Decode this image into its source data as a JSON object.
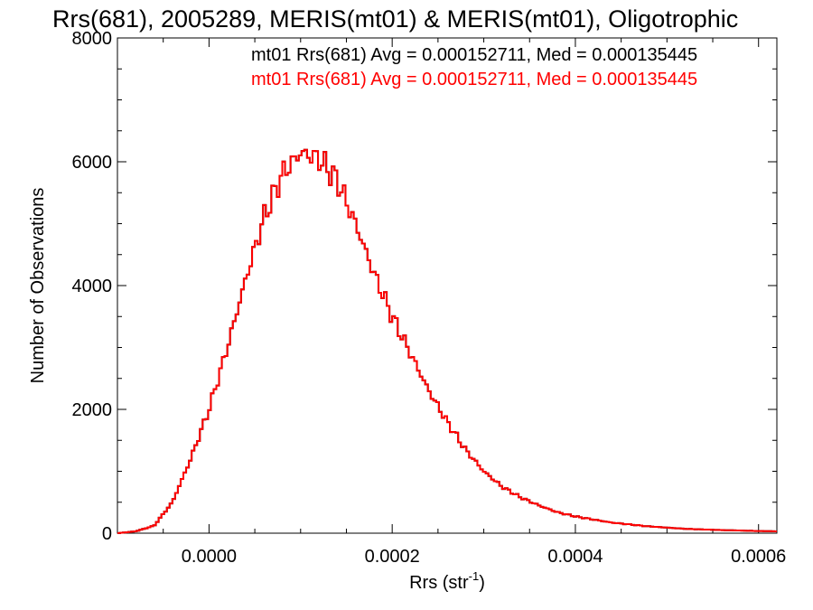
{
  "chart_data": {
    "type": "histogram",
    "title": "Rrs(681), 2005289, MERIS(mt01) & MERIS(mt01), Oligotrophic",
    "xlabel": "Rrs (str",
    "xlabel_exponent": "-1",
    "xlabel_close": ")",
    "ylabel": "Number of Observations",
    "xlim": [
      -0.0001,
      0.00062
    ],
    "ylim": [
      0,
      8000
    ],
    "x_ticks": [
      0.0,
      0.0002,
      0.0004,
      0.0006
    ],
    "x_tick_labels": [
      "0.0000",
      "0.0002",
      "0.0004",
      "0.0006"
    ],
    "y_ticks": [
      0,
      2000,
      4000,
      6000,
      8000
    ],
    "y_tick_labels": [
      "0",
      "2000",
      "4000",
      "6000",
      "8000"
    ],
    "legend_placement": "top-right",
    "series": [
      {
        "name": "mt01 Rrs(681) Avg = 0.000152711, Med = 0.000135445",
        "color": "#000000",
        "x": [
          -0.0001,
          -8e-05,
          -6e-05,
          -4e-05,
          -2e-05,
          0.0,
          2e-05,
          4e-05,
          6e-05,
          8e-05,
          0.0001,
          0.00011,
          0.00012,
          0.00014,
          0.00016,
          0.00018,
          0.0002,
          0.00022,
          0.00024,
          0.00026,
          0.00028,
          0.0003,
          0.00032,
          0.00034,
          0.00036,
          0.00038,
          0.0004,
          0.00044,
          0.00048,
          0.00052,
          0.00056,
          0.0006,
          0.00062
        ],
        "y": [
          0,
          30,
          120,
          500,
          1200,
          2000,
          3000,
          4100,
          5100,
          5800,
          6150,
          6100,
          6050,
          5700,
          5000,
          4200,
          3500,
          2900,
          2300,
          1800,
          1350,
          1000,
          750,
          580,
          450,
          340,
          270,
          170,
          110,
          70,
          50,
          35,
          30
        ]
      },
      {
        "name": "mt01 Rrs(681) Avg = 0.000152711, Med = 0.000135445",
        "color": "#ff0000",
        "x": [
          -0.0001,
          -8e-05,
          -6e-05,
          -4e-05,
          -2e-05,
          0.0,
          2e-05,
          4e-05,
          6e-05,
          8e-05,
          0.0001,
          0.00011,
          0.00012,
          0.00014,
          0.00016,
          0.00018,
          0.0002,
          0.00022,
          0.00024,
          0.00026,
          0.00028,
          0.0003,
          0.00032,
          0.00034,
          0.00036,
          0.00038,
          0.0004,
          0.00044,
          0.00048,
          0.00052,
          0.00056,
          0.0006,
          0.00062
        ],
        "y": [
          0,
          30,
          120,
          500,
          1200,
          2000,
          3000,
          4100,
          5100,
          5800,
          6150,
          6100,
          6050,
          5700,
          5000,
          4200,
          3500,
          2900,
          2300,
          1800,
          1350,
          1000,
          750,
          580,
          450,
          340,
          270,
          170,
          110,
          70,
          50,
          35,
          30
        ]
      }
    ]
  }
}
